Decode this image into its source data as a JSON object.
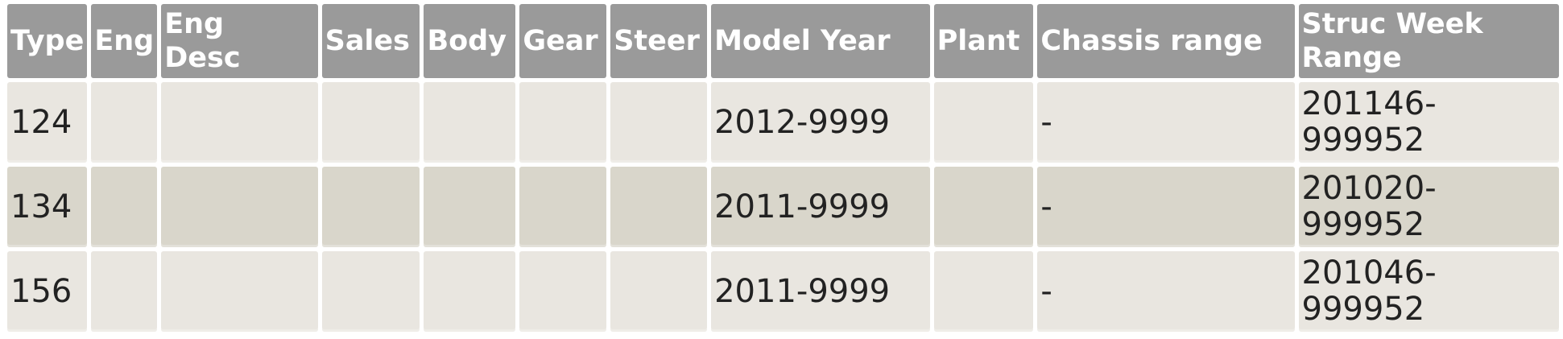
{
  "colors": {
    "header_bg": "#9a9a9a",
    "header_text": "#ffffff",
    "row_light": "#e9e6e0",
    "row_dark": "#d9d6cb",
    "cell_text": "#222222",
    "page_bg": "#ffffff"
  },
  "table": {
    "columns": [
      {
        "key": "type",
        "label": "Type"
      },
      {
        "key": "eng",
        "label": "Eng"
      },
      {
        "key": "eng_desc",
        "label": "Eng Desc"
      },
      {
        "key": "sales",
        "label": "Sales"
      },
      {
        "key": "body",
        "label": "Body"
      },
      {
        "key": "gear",
        "label": "Gear"
      },
      {
        "key": "steer",
        "label": "Steer"
      },
      {
        "key": "model_year",
        "label": "Model Year"
      },
      {
        "key": "plant",
        "label": "Plant"
      },
      {
        "key": "chassis_range",
        "label": "Chassis range"
      },
      {
        "key": "struc_week_range",
        "label": "Struc Week Range"
      }
    ],
    "rows": [
      {
        "type": "124",
        "eng": "",
        "eng_desc": "",
        "sales": "",
        "body": "",
        "gear": "",
        "steer": "",
        "model_year": "2012-9999",
        "plant": "",
        "chassis_range": "-",
        "struc_week_range": "201146-999952"
      },
      {
        "type": "134",
        "eng": "",
        "eng_desc": "",
        "sales": "",
        "body": "",
        "gear": "",
        "steer": "",
        "model_year": "2011-9999",
        "plant": "",
        "chassis_range": "-",
        "struc_week_range": "201020-999952"
      },
      {
        "type": "156",
        "eng": "",
        "eng_desc": "",
        "sales": "",
        "body": "",
        "gear": "",
        "steer": "",
        "model_year": "2011-9999",
        "plant": "",
        "chassis_range": "-",
        "struc_week_range": "201046-999952"
      }
    ]
  }
}
